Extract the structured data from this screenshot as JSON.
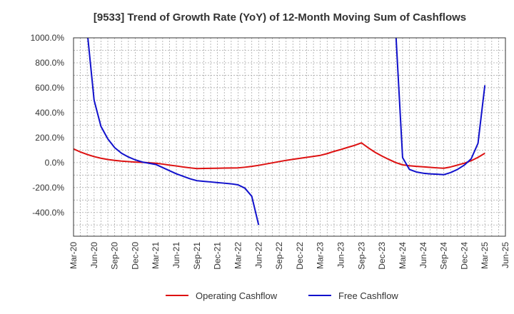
{
  "chart_data": {
    "type": "line",
    "title": "[9533]  Trend of Growth Rate (YoY) of 12-Month Moving Sum of Cashflows",
    "xlabel": "",
    "ylabel": "",
    "x_tick_labels": [
      "Mar-20",
      "Jun-20",
      "Sep-20",
      "Dec-20",
      "Mar-21",
      "Jun-21",
      "Sep-21",
      "Dec-21",
      "Mar-22",
      "Jun-22",
      "Sep-22",
      "Dec-22",
      "Mar-23",
      "Jun-23",
      "Sep-23",
      "Dec-23",
      "Mar-24",
      "Jun-24",
      "Sep-24",
      "Dec-24",
      "Mar-25",
      "Jun-25"
    ],
    "y_tick_labels": [
      "1000.0%",
      "800.0%",
      "600.0%",
      "400.0%",
      "200.0%",
      "0.0%",
      "-200.0%",
      "-400.0%"
    ],
    "ylim": [
      -590,
      1000
    ],
    "grid": true,
    "legend_position": "bottom-center",
    "series": [
      {
        "name": "Operating Cashflow",
        "color": "#dd1111",
        "points": [
          [
            "Mar-20",
            110
          ],
          [
            "Apr-20",
            85
          ],
          [
            "May-20",
            65
          ],
          [
            "Jun-20",
            48
          ],
          [
            "Jul-20",
            35
          ],
          [
            "Aug-20",
            25
          ],
          [
            "Sep-20",
            18
          ],
          [
            "Oct-20",
            12
          ],
          [
            "Nov-20",
            8
          ],
          [
            "Dec-20",
            4
          ],
          [
            "Jan-21",
            2
          ],
          [
            "Feb-21",
            -1
          ],
          [
            "Mar-21",
            -5
          ],
          [
            "Apr-21",
            -12
          ],
          [
            "May-21",
            -20
          ],
          [
            "Jun-21",
            -27
          ],
          [
            "Jul-21",
            -35
          ],
          [
            "Aug-21",
            -42
          ],
          [
            "Sep-21",
            -48
          ],
          [
            "Oct-21",
            -47
          ],
          [
            "Nov-21",
            -46
          ],
          [
            "Dec-21",
            -45
          ],
          [
            "Jan-22",
            -44
          ],
          [
            "Feb-22",
            -43
          ],
          [
            "Mar-22",
            -42
          ],
          [
            "Apr-22",
            -37
          ],
          [
            "May-22",
            -30
          ],
          [
            "Jun-22",
            -22
          ],
          [
            "Jul-22",
            -12
          ],
          [
            "Aug-22",
            -2
          ],
          [
            "Sep-22",
            8
          ],
          [
            "Oct-22",
            18
          ],
          [
            "Nov-22",
            26
          ],
          [
            "Dec-22",
            34
          ],
          [
            "Jan-23",
            42
          ],
          [
            "Feb-23",
            50
          ],
          [
            "Mar-23",
            58
          ],
          [
            "Apr-23",
            72
          ],
          [
            "May-23",
            90
          ],
          [
            "Jun-23",
            105
          ],
          [
            "Jul-23",
            122
          ],
          [
            "Aug-23",
            138
          ],
          [
            "Sep-23",
            158
          ],
          [
            "Oct-23",
            118
          ],
          [
            "Nov-23",
            82
          ],
          [
            "Dec-23",
            52
          ],
          [
            "Jan-24",
            25
          ],
          [
            "Feb-24",
            0
          ],
          [
            "Mar-24",
            -18
          ],
          [
            "Apr-24",
            -25
          ],
          [
            "May-24",
            -30
          ],
          [
            "Jun-24",
            -34
          ],
          [
            "Jul-24",
            -38
          ],
          [
            "Aug-24",
            -42
          ],
          [
            "Sep-24",
            -45
          ],
          [
            "Oct-24",
            -35
          ],
          [
            "Nov-24",
            -20
          ],
          [
            "Dec-24",
            -5
          ],
          [
            "Jan-25",
            15
          ],
          [
            "Feb-25",
            42
          ],
          [
            "Mar-25",
            75
          ]
        ]
      },
      {
        "name": "Free Cashflow",
        "color": "#1111cc",
        "segments": [
          [
            [
              "May-20",
              1050
            ],
            [
              "Jun-20",
              500
            ],
            [
              "Jul-20",
              290
            ],
            [
              "Aug-20",
              190
            ],
            [
              "Sep-20",
              120
            ],
            [
              "Oct-20",
              75
            ],
            [
              "Nov-20",
              45
            ],
            [
              "Dec-20",
              22
            ],
            [
              "Jan-21",
              5
            ],
            [
              "Feb-21",
              -5
            ],
            [
              "Mar-21",
              -15
            ],
            [
              "Apr-21",
              -40
            ],
            [
              "May-21",
              -65
            ],
            [
              "Jun-21",
              -90
            ],
            [
              "Jul-21",
              -110
            ],
            [
              "Aug-21",
              -130
            ],
            [
              "Sep-21",
              -145
            ],
            [
              "Oct-21",
              -150
            ],
            [
              "Nov-21",
              -155
            ],
            [
              "Dec-21",
              -160
            ],
            [
              "Jan-22",
              -165
            ],
            [
              "Feb-22",
              -170
            ],
            [
              "Mar-22",
              -178
            ],
            [
              "Apr-22",
              -205
            ],
            [
              "May-22",
              -270
            ],
            [
              "Jun-22",
              -500
            ]
          ],
          [
            [
              "Feb-24",
              1050
            ],
            [
              "Mar-24",
              40
            ],
            [
              "Apr-24",
              -55
            ],
            [
              "May-24",
              -75
            ],
            [
              "Jun-24",
              -85
            ],
            [
              "Jul-24",
              -90
            ],
            [
              "Aug-24",
              -93
            ],
            [
              "Sep-24",
              -97
            ],
            [
              "Oct-24",
              -80
            ],
            [
              "Nov-24",
              -55
            ],
            [
              "Dec-24",
              -20
            ],
            [
              "Jan-25",
              30
            ],
            [
              "Feb-25",
              155
            ],
            [
              "Mar-25",
              620
            ]
          ]
        ]
      }
    ]
  }
}
